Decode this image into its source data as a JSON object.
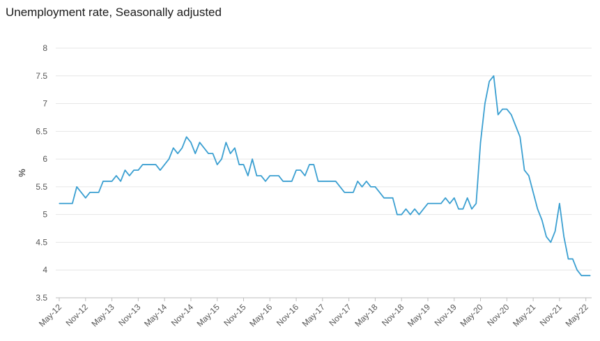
{
  "chart_data": {
    "type": "line",
    "title": "Unemployment rate, Seasonally adjusted",
    "xlabel": "",
    "ylabel": "%",
    "ylim": [
      3.5,
      8
    ],
    "yticks": [
      "3.5",
      "4",
      "4.5",
      "5",
      "5.5",
      "6",
      "6.5",
      "7",
      "7.5",
      "8"
    ],
    "grid": true,
    "line_color": "#3a9fd1",
    "x_tick_labels": [
      "May-12",
      "Nov-12",
      "May-13",
      "Nov-13",
      "May-14",
      "Nov-14",
      "May-15",
      "Nov-15",
      "May-16",
      "Nov-16",
      "May-17",
      "Nov-17",
      "May-18",
      "Nov-18",
      "May-19",
      "Nov-19",
      "May-20",
      "Nov-20",
      "May-21",
      "Nov-21",
      "May-22"
    ],
    "x_start": "May-12",
    "x_end": "May-22",
    "series": [
      {
        "values": [
          5.2,
          5.2,
          5.2,
          5.2,
          5.5,
          5.4,
          5.3,
          5.4,
          5.4,
          5.4,
          5.6,
          5.6,
          5.6,
          5.7,
          5.6,
          5.8,
          5.7,
          5.8,
          5.8,
          5.9,
          5.9,
          5.9,
          5.9,
          5.8,
          5.9,
          6.0,
          6.2,
          6.1,
          6.2,
          6.4,
          6.3,
          6.1,
          6.3,
          6.2,
          6.1,
          6.1,
          5.9,
          6.0,
          6.3,
          6.1,
          6.2,
          5.9,
          5.9,
          5.7,
          6.0,
          5.7,
          5.7,
          5.6,
          5.7,
          5.7,
          5.7,
          5.6,
          5.6,
          5.6,
          5.8,
          5.8,
          5.7,
          5.9,
          5.9,
          5.6,
          5.6,
          5.6,
          5.6,
          5.6,
          5.5,
          5.4,
          5.4,
          5.4,
          5.6,
          5.5,
          5.6,
          5.5,
          5.5,
          5.4,
          5.3,
          5.3,
          5.3,
          5.0,
          5.0,
          5.1,
          5.0,
          5.1,
          5.0,
          5.1,
          5.2,
          5.2,
          5.2,
          5.2,
          5.3,
          5.2,
          5.3,
          5.1,
          5.1,
          5.3,
          5.1,
          5.2,
          6.3,
          7.0,
          7.4,
          7.5,
          6.8,
          6.9,
          6.9,
          6.8,
          6.6,
          6.4,
          5.8,
          5.7,
          5.4,
          5.1,
          4.9,
          4.6,
          4.5,
          4.7,
          5.2,
          4.6,
          4.2,
          4.2,
          4.0,
          3.9,
          3.9,
          3.9
        ]
      }
    ]
  }
}
